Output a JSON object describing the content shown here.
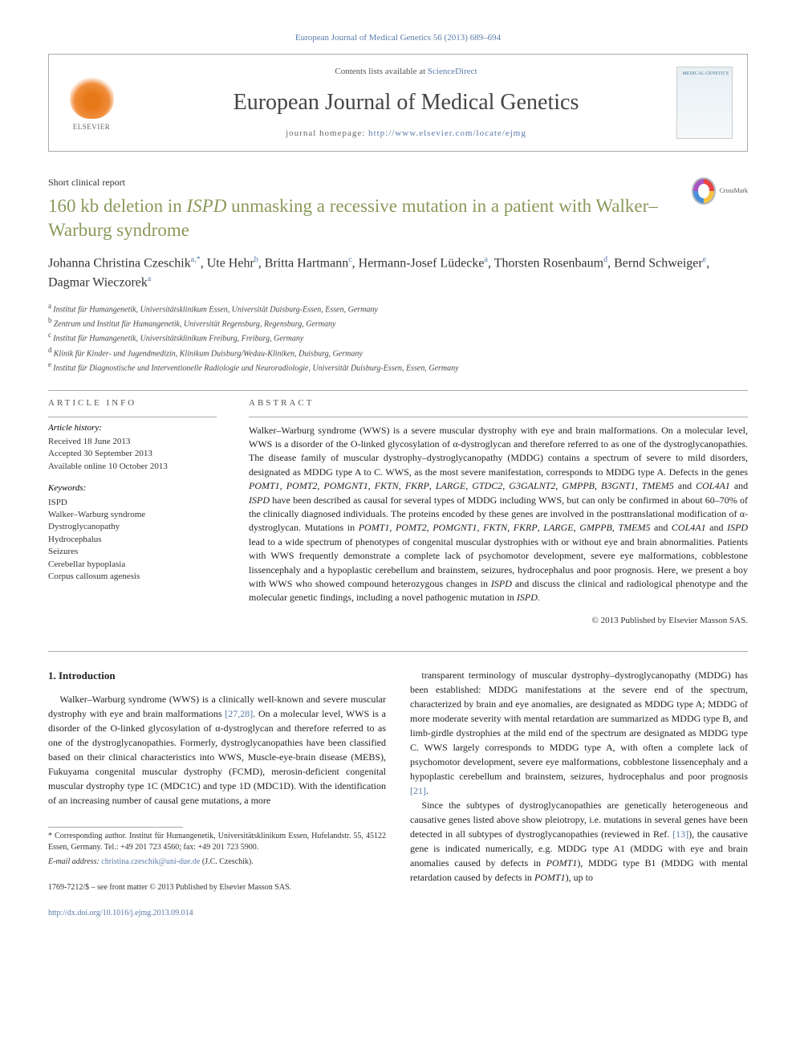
{
  "citation": "European Journal of Medical Genetics 56 (2013) 689–694",
  "header": {
    "contents_prefix": "Contents lists available at ",
    "contents_link": "ScienceDirect",
    "journal_name": "European Journal of Medical Genetics",
    "homepage_prefix": "journal homepage: ",
    "homepage_url": "http://www.elsevier.com/locate/ejmg",
    "elsevier_label": "ELSEVIER",
    "cover_label": "MEDICAL GENETICS"
  },
  "crossmark_label": "CrossMark",
  "article_type": "Short clinical report",
  "title_pre": "160 kb deletion in ",
  "title_gene": "ISPD",
  "title_post": " unmasking a recessive mutation in a patient with Walker–Warburg syndrome",
  "authors_html": "Johanna Christina Czeschik|a,*| , Ute Hehr|b| , Britta Hartmann|c| , Hermann-Josef Lüdecke|a| , Thorsten Rosenbaum|d| , Bernd Schweiger|e| , Dagmar Wieczorek|a|",
  "affiliations": [
    {
      "sup": "a",
      "text": "Institut für Humangenetik, Universitätsklinikum Essen, Universität Duisburg-Essen, Essen, Germany"
    },
    {
      "sup": "b",
      "text": "Zentrum und Institut für Humangenetik, Universität Regensburg, Regensburg, Germany"
    },
    {
      "sup": "c",
      "text": "Institut für Humangenetik, Universitätsklinikum Freiburg, Freiburg, Germany"
    },
    {
      "sup": "d",
      "text": "Klinik für Kinder- und Jugendmedizin, Klinikum Duisburg/Wedau-Kliniken, Duisburg, Germany"
    },
    {
      "sup": "e",
      "text": "Institut für Diagnostische und Interventionelle Radiologie und Neuroradiologie, Universität Duisburg-Essen, Essen, Germany"
    }
  ],
  "info": {
    "heading": "ARTICLE INFO",
    "history_label": "Article history:",
    "history": [
      "Received 18 June 2013",
      "Accepted 30 September 2013",
      "Available online 10 October 2013"
    ],
    "keywords_label": "Keywords:",
    "keywords": [
      "ISPD",
      "Walker–Warburg syndrome",
      "Dystroglycanopathy",
      "Hydrocephalus",
      "Seizures",
      "Cerebellar hypoplasia",
      "Corpus callosum agenesis"
    ]
  },
  "abstract": {
    "heading": "ABSTRACT",
    "text": "Walker–Warburg syndrome (WWS) is a severe muscular dystrophy with eye and brain malformations. On a molecular level, WWS is a disorder of the O-linked glycosylation of α-dystroglycan and therefore referred to as one of the dystroglycanopathies. The disease family of muscular dystrophy–dystroglycanopathy (MDDG) contains a spectrum of severe to mild disorders, designated as MDDG type A to C. WWS, as the most severe manifestation, corresponds to MDDG type A. Defects in the genes POMT1, POMT2, POMGNT1, FKTN, FKRP, LARGE, GTDC2, G3GALNT2, GMPPB, B3GNT1, TMEM5 and COL4A1 and ISPD have been described as causal for several types of MDDG including WWS, but can only be confirmed in about 60–70% of the clinically diagnosed individuals. The proteins encoded by these genes are involved in the posttranslational modification of α-dystroglycan. Mutations in POMT1, POMT2, POMGNT1, FKTN, FKRP, LARGE, GMPPB, TMEM5 and COL4A1 and ISPD lead to a wide spectrum of phenotypes of congenital muscular dystrophies with or without eye and brain abnormalities. Patients with WWS frequently demonstrate a complete lack of psychomotor development, severe eye malformations, cobblestone lissencephaly and a hypoplastic cerebellum and brainstem, seizures, hydrocephalus and poor prognosis. Here, we present a boy with WWS who showed compound heterozygous changes in ISPD and discuss the clinical and radiological phenotype and the molecular genetic findings, including a novel pathogenic mutation in ISPD.",
    "copyright": "© 2013 Published by Elsevier Masson SAS."
  },
  "body": {
    "section_heading": "1. Introduction",
    "col1": "Walker–Warburg syndrome (WWS) is a clinically well-known and severe muscular dystrophy with eye and brain malformations [27,28]. On a molecular level, WWS is a disorder of the O-linked glycosylation of α-dystroglycan and therefore referred to as one of the dystroglycanopathies. Formerly, dystroglycanopathies have been classified based on their clinical characteristics into WWS, Muscle-eye-brain disease (MEBS), Fukuyama congenital muscular dystrophy (FCMD), merosin-deficient congenital muscular dystrophy type 1C (MDC1C) and type 1D (MDC1D). With the identification of an increasing number of causal gene mutations, a more",
    "col2_p1": "transparent terminology of muscular dystrophy–dystroglycanopathy (MDDG) has been established: MDDG manifestations at the severe end of the spectrum, characterized by brain and eye anomalies, are designated as MDDG type A; MDDG of more moderate severity with mental retardation are summarized as MDDG type B, and limb-girdle dystrophies at the mild end of the spectrum are designated as MDDG type C. WWS largely corresponds to MDDG type A, with often a complete lack of psychomotor development, severe eye malformations, cobblestone lissencephaly and a hypoplastic cerebellum and brainstem, seizures, hydrocephalus and poor prognosis [21].",
    "col2_p2": "Since the subtypes of dystroglycanopathies are genetically heterogeneous and causative genes listed above show pleiotropy, i.e. mutations in several genes have been detected in all subtypes of dystroglycanopathies (reviewed in Ref. [13]), the causative gene is indicated numerically, e.g. MDDG type A1 (MDDG with eye and brain anomalies caused by defects in POMT1), MDDG type B1 (MDDG with mental retardation caused by defects in POMT1), up to"
  },
  "footnote": {
    "corresponding": "* Corresponding author. Institut für Humangenetik, Universitätsklinikum Essen, Hufelandstr. 55, 45122 Essen, Germany. Tel.: +49 201 723 4560; fax: +49 201 723 5900.",
    "email_label": "E-mail address:",
    "email": "christina.czeschik@uni-due.de",
    "email_attrib": "(J.C. Czeschik)."
  },
  "footer": {
    "issn": "1769-7212/$ – see front matter © 2013 Published by Elsevier Masson SAS.",
    "doi": "http://dx.doi.org/10.1016/j.ejmg.2013.09.014"
  },
  "colors": {
    "link": "#5a7ba8",
    "title": "#8a9a5a",
    "text": "#222222",
    "border": "#aaaaaa"
  }
}
